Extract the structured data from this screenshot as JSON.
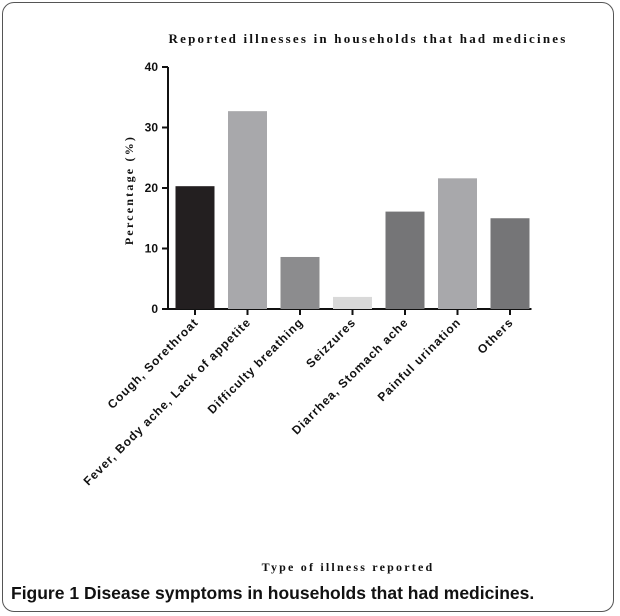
{
  "figure": {
    "label": "Figure 1",
    "caption": "Disease symptoms in households that had medicines."
  },
  "chart_data": {
    "type": "bar",
    "title": "Reported illnesses in households that had medicines",
    "xlabel": "Type of illness reported",
    "ylabel": "Percentage (%)",
    "ylim": [
      0,
      40
    ],
    "yticks": [
      "0",
      "10",
      "20",
      "30",
      "40"
    ],
    "categories": [
      "Cough, Sorethroat",
      "Fever, Body ache, Lack of appetite",
      "Difficulty breathing",
      "Seizzures",
      "Diarrhea, Stomach ache",
      "Painful urination",
      "Others"
    ],
    "values": [
      20.3,
      32.7,
      8.6,
      2.0,
      16.1,
      21.6,
      15.0
    ],
    "colors": [
      "#231f20",
      "#a8a8ab",
      "#8c8c8e",
      "#d9d9d9",
      "#757577",
      "#a8a8ab",
      "#757577"
    ],
    "grid": false,
    "legend": "none"
  }
}
